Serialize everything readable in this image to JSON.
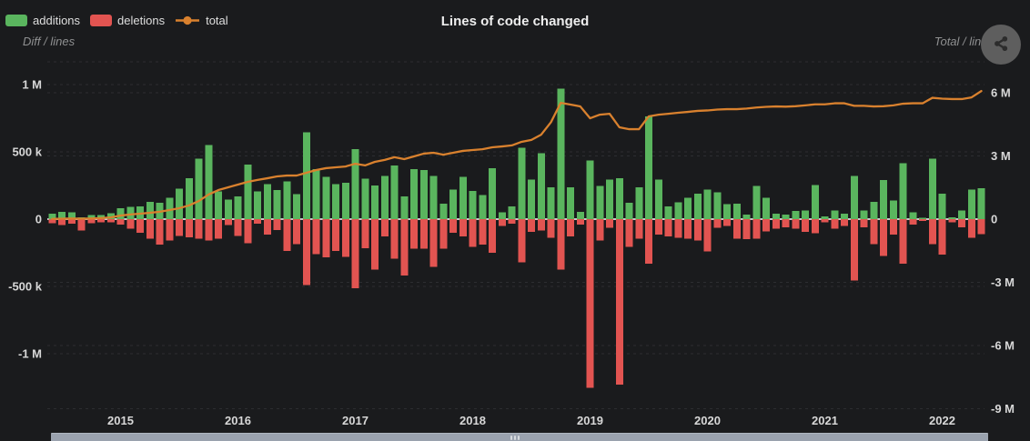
{
  "header": {
    "title": "Lines of code changed",
    "legend": {
      "items": [
        {
          "label": "additions"
        },
        {
          "label": "deletions"
        },
        {
          "label": "total"
        }
      ]
    },
    "left_axis_caption": "Diff / lines",
    "right_axis_caption": "Total / lines",
    "menu_button_icon": "share-icon"
  },
  "colors": {
    "background": "#1a1b1d",
    "additions": "#5ab55e",
    "deletions": "#e25451",
    "total": "#d9812e",
    "title": "#eeeeee",
    "legend_text": "#dfdfdf",
    "axis_label": "#d8d8d8",
    "caption": "#8f9091",
    "grid": "#2d2e31",
    "zero_line": "#c6c7c8",
    "scrollbar": "#9aa2ae",
    "scrollbar_grip": "#d6dade",
    "menu_circle": "#5e5e5e",
    "menu_icon": "#2c2c2c"
  },
  "chart_data": {
    "type": "combo",
    "title": "Lines of code changed",
    "granularity": "monthly",
    "x_axis": {
      "start": "2014-06",
      "interval": "month",
      "tick_labels": [
        "2015",
        "2016",
        "2017",
        "2018",
        "2019",
        "2020",
        "2021",
        "2022"
      ]
    },
    "left_y_axis": {
      "caption": "Diff / lines",
      "tick_labels": [
        "1 M",
        "500 k",
        "0",
        "-500 k",
        "-1 M"
      ],
      "tick_values_k": [
        1000,
        500,
        0,
        -500,
        -1000
      ],
      "unit": "lines (thousands)"
    },
    "right_y_axis": {
      "caption": "Total / lines",
      "tick_labels": [
        "6 M",
        "3 M",
        "0",
        "-3 M",
        "-6 M",
        "-9 M"
      ],
      "tick_values_M": [
        6,
        3,
        0,
        -3,
        -6,
        -9
      ],
      "unit": "lines (millions)"
    },
    "legend_position": "top-left",
    "grid": "dashed-horizontal",
    "series": [
      {
        "name": "additions",
        "type": "bar",
        "axis": "left",
        "unit": "k lines",
        "color": "#5ab55e",
        "values": [
          40,
          55,
          50,
          15,
          30,
          30,
          45,
          80,
          90,
          95,
          130,
          120,
          160,
          225,
          305,
          450,
          550,
          205,
          145,
          170,
          405,
          205,
          260,
          215,
          280,
          185,
          645,
          370,
          315,
          260,
          270,
          520,
          300,
          250,
          320,
          400,
          170,
          370,
          365,
          320,
          115,
          220,
          315,
          210,
          180,
          380,
          50,
          95,
          530,
          295,
          490,
          235,
          970,
          235,
          55,
          435,
          245,
          295,
          305,
          120,
          235,
          765,
          295,
          95,
          125,
          160,
          190,
          220,
          200,
          110,
          115,
          35,
          245,
          160,
          40,
          35,
          60,
          65,
          255,
          20,
          65,
          40,
          320,
          65,
          130,
          290,
          140,
          415,
          50,
          10,
          450,
          190,
          15,
          65,
          220,
          230
        ]
      },
      {
        "name": "deletions",
        "type": "bar",
        "axis": "left",
        "direction": "negative",
        "unit": "k lines",
        "color": "#e25451",
        "values": [
          30,
          45,
          35,
          85,
          30,
          25,
          25,
          40,
          70,
          100,
          145,
          190,
          160,
          125,
          135,
          145,
          160,
          145,
          45,
          125,
          180,
          35,
          115,
          80,
          235,
          185,
          490,
          260,
          285,
          235,
          280,
          515,
          215,
          375,
          130,
          295,
          420,
          220,
          220,
          355,
          220,
          100,
          130,
          205,
          190,
          250,
          50,
          35,
          320,
          95,
          85,
          140,
          375,
          130,
          40,
          1255,
          160,
          65,
          1230,
          205,
          145,
          330,
          115,
          130,
          140,
          145,
          160,
          240,
          65,
          50,
          145,
          150,
          145,
          90,
          70,
          60,
          70,
          95,
          105,
          25,
          70,
          50,
          455,
          60,
          185,
          275,
          115,
          330,
          40,
          15,
          185,
          265,
          25,
          60,
          140,
          110
        ]
      },
      {
        "name": "total",
        "type": "line",
        "axis": "right",
        "unit": "M lines",
        "color": "#d9812e",
        "values": [
          0.01,
          0.02,
          0.03,
          0.02,
          0.03,
          0.05,
          0.08,
          0.17,
          0.22,
          0.26,
          0.3,
          0.35,
          0.43,
          0.52,
          0.65,
          0.86,
          1.17,
          1.38,
          1.51,
          1.64,
          1.77,
          1.86,
          1.94,
          2.03,
          2.07,
          2.07,
          2.2,
          2.33,
          2.42,
          2.46,
          2.5,
          2.63,
          2.55,
          2.72,
          2.81,
          2.94,
          2.85,
          2.98,
          3.11,
          3.15,
          3.06,
          3.15,
          3.24,
          3.28,
          3.32,
          3.41,
          3.45,
          3.5,
          3.67,
          3.76,
          4.01,
          4.6,
          5.52,
          5.44,
          5.35,
          4.79,
          4.96,
          5.0,
          4.36,
          4.27,
          4.27,
          4.88,
          4.96,
          5.0,
          5.05,
          5.09,
          5.14,
          5.16,
          5.2,
          5.22,
          5.22,
          5.25,
          5.3,
          5.33,
          5.35,
          5.34,
          5.36,
          5.4,
          5.45,
          5.45,
          5.5,
          5.5,
          5.38,
          5.38,
          5.35,
          5.36,
          5.4,
          5.48,
          5.5,
          5.5,
          5.76,
          5.72,
          5.7,
          5.7,
          5.78,
          6.08
        ]
      }
    ]
  }
}
